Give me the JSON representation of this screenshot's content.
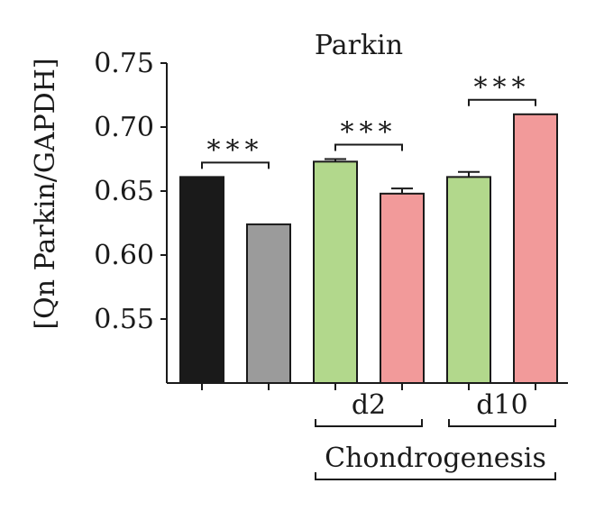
{
  "chart_data": {
    "type": "bar",
    "title": "Parkin",
    "ylabel": "[Qn Parkin/GAPDH]",
    "xlabel": "",
    "ylim": [
      0.5,
      0.75
    ],
    "yticks": [
      0.55,
      0.6,
      0.65,
      0.7,
      0.75
    ],
    "ytick_labels": [
      "0.55",
      "0.60",
      "0.65",
      "0.70",
      "0.75"
    ],
    "bars": [
      {
        "value": 0.661,
        "error": 0.0,
        "color": "#1a1a1a"
      },
      {
        "value": 0.624,
        "error": 0.0,
        "color": "#9b9b9b"
      },
      {
        "value": 0.673,
        "error": 0.002,
        "color": "#b2d88c"
      },
      {
        "value": 0.648,
        "error": 0.004,
        "color": "#f29a9a"
      },
      {
        "value": 0.661,
        "error": 0.004,
        "color": "#b2d88c"
      },
      {
        "value": 0.71,
        "error": 0.0,
        "color": "#f29a9a"
      }
    ],
    "groups": [
      {
        "label": "d2",
        "bars": [
          2,
          3
        ]
      },
      {
        "label": "d10",
        "bars": [
          4,
          5
        ]
      }
    ],
    "super_group": {
      "label": "Chondrogenesis",
      "bars": [
        2,
        5
      ]
    },
    "significance": [
      {
        "bars": [
          0,
          1
        ],
        "label": "***"
      },
      {
        "bars": [
          2,
          3
        ],
        "label": "***"
      },
      {
        "bars": [
          4,
          5
        ],
        "label": "***"
      }
    ],
    "grid": false,
    "legend": "none"
  }
}
